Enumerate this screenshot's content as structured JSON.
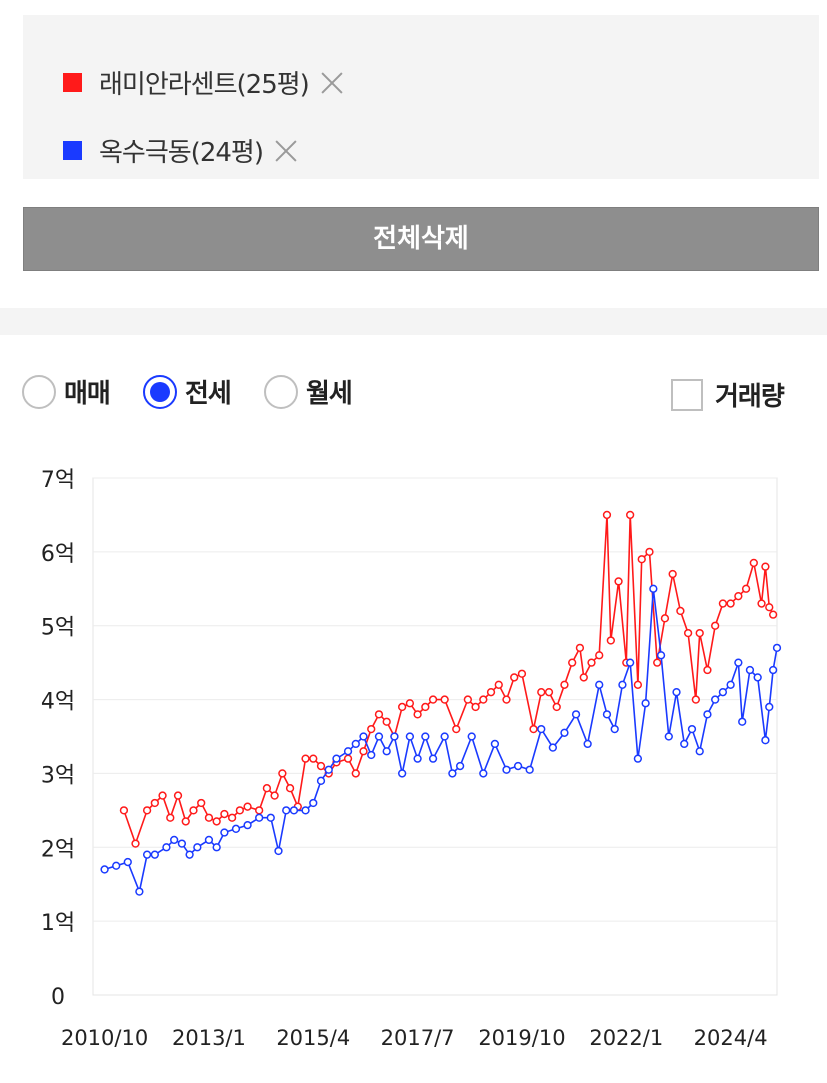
{
  "compare": {
    "items": [
      {
        "name": "래미안라센트(25평)",
        "color": "#ff1a1a"
      },
      {
        "name": "옥수극동(24평)",
        "color": "#1a3aff"
      }
    ],
    "delete_all_label": "전체삭제"
  },
  "filters": {
    "options": [
      "매매",
      "전세",
      "월세"
    ],
    "selected": "전세",
    "volume_label": "거래량",
    "volume_checked": false
  },
  "chart_data": {
    "type": "line",
    "title": "",
    "xlabel": "",
    "ylabel": "",
    "x_ticks": [
      "2010/10",
      "2013/1",
      "2015/4",
      "2017/7",
      "2019/10",
      "2022/1",
      "2024/4"
    ],
    "y_ticks": [
      "0",
      "1억",
      "2억",
      "3억",
      "4억",
      "5억",
      "6억",
      "7억"
    ],
    "ylim": [
      0,
      7
    ],
    "xlim": [
      "2010/7",
      "2025/4"
    ],
    "y_unit": "억",
    "grid": "horizontal",
    "series": [
      {
        "name": "래미안라센트(25평)",
        "color": "#ff1a1a",
        "points": [
          [
            "2011/3",
            2.5
          ],
          [
            "2011/6",
            2.05
          ],
          [
            "2011/9",
            2.5
          ],
          [
            "2011/11",
            2.6
          ],
          [
            "2012/1",
            2.7
          ],
          [
            "2012/3",
            2.4
          ],
          [
            "2012/5",
            2.7
          ],
          [
            "2012/7",
            2.35
          ],
          [
            "2012/9",
            2.5
          ],
          [
            "2012/11",
            2.6
          ],
          [
            "2013/1",
            2.4
          ],
          [
            "2013/3",
            2.35
          ],
          [
            "2013/5",
            2.45
          ],
          [
            "2013/7",
            2.4
          ],
          [
            "2013/9",
            2.5
          ],
          [
            "2013/11",
            2.55
          ],
          [
            "2014/2",
            2.5
          ],
          [
            "2014/4",
            2.8
          ],
          [
            "2014/6",
            2.7
          ],
          [
            "2014/8",
            3.0
          ],
          [
            "2014/10",
            2.8
          ],
          [
            "2014/12",
            2.55
          ],
          [
            "2015/2",
            3.2
          ],
          [
            "2015/4",
            3.2
          ],
          [
            "2015/6",
            3.1
          ],
          [
            "2015/8",
            3.0
          ],
          [
            "2015/10",
            3.15
          ],
          [
            "2016/1",
            3.2
          ],
          [
            "2016/3",
            3.0
          ],
          [
            "2016/5",
            3.3
          ],
          [
            "2016/7",
            3.6
          ],
          [
            "2016/9",
            3.8
          ],
          [
            "2016/11",
            3.7
          ],
          [
            "2017/1",
            3.5
          ],
          [
            "2017/3",
            3.9
          ],
          [
            "2017/5",
            3.95
          ],
          [
            "2017/7",
            3.8
          ],
          [
            "2017/9",
            3.9
          ],
          [
            "2017/11",
            4.0
          ],
          [
            "2018/2",
            4.0
          ],
          [
            "2018/5",
            3.6
          ],
          [
            "2018/8",
            4.0
          ],
          [
            "2018/10",
            3.9
          ],
          [
            "2018/12",
            4.0
          ],
          [
            "2019/2",
            4.1
          ],
          [
            "2019/4",
            4.2
          ],
          [
            "2019/6",
            4.0
          ],
          [
            "2019/8",
            4.3
          ],
          [
            "2019/10",
            4.35
          ],
          [
            "2020/1",
            3.6
          ],
          [
            "2020/3",
            4.1
          ],
          [
            "2020/5",
            4.1
          ],
          [
            "2020/7",
            3.9
          ],
          [
            "2020/9",
            4.2
          ],
          [
            "2020/11",
            4.5
          ],
          [
            "2021/1",
            4.7
          ],
          [
            "2021/2",
            4.3
          ],
          [
            "2021/4",
            4.5
          ],
          [
            "2021/6",
            4.6
          ],
          [
            "2021/8",
            6.5
          ],
          [
            "2021/9",
            4.8
          ],
          [
            "2021/11",
            5.6
          ],
          [
            "2022/1",
            4.5
          ],
          [
            "2022/2",
            6.5
          ],
          [
            "2022/4",
            4.2
          ],
          [
            "2022/5",
            5.9
          ],
          [
            "2022/7",
            6.0
          ],
          [
            "2022/9",
            4.5
          ],
          [
            "2022/11",
            5.1
          ],
          [
            "2023/1",
            5.7
          ],
          [
            "2023/3",
            5.2
          ],
          [
            "2023/5",
            4.9
          ],
          [
            "2023/7",
            4.0
          ],
          [
            "2023/8",
            4.9
          ],
          [
            "2023/10",
            4.4
          ],
          [
            "2023/12",
            5.0
          ],
          [
            "2024/2",
            5.3
          ],
          [
            "2024/4",
            5.3
          ],
          [
            "2024/6",
            5.4
          ],
          [
            "2024/8",
            5.5
          ],
          [
            "2024/10",
            5.85
          ],
          [
            "2024/12",
            5.3
          ],
          [
            "2025/1",
            5.8
          ],
          [
            "2025/2",
            5.25
          ],
          [
            "2025/3",
            5.15
          ]
        ]
      },
      {
        "name": "옥수극동(24평)",
        "color": "#1a3aff",
        "points": [
          [
            "2010/10",
            1.7
          ],
          [
            "2011/1",
            1.75
          ],
          [
            "2011/4",
            1.8
          ],
          [
            "2011/7",
            1.4
          ],
          [
            "2011/9",
            1.9
          ],
          [
            "2011/11",
            1.9
          ],
          [
            "2012/2",
            2.0
          ],
          [
            "2012/4",
            2.1
          ],
          [
            "2012/6",
            2.05
          ],
          [
            "2012/8",
            1.9
          ],
          [
            "2012/10",
            2.0
          ],
          [
            "2013/1",
            2.1
          ],
          [
            "2013/3",
            2.0
          ],
          [
            "2013/5",
            2.2
          ],
          [
            "2013/8",
            2.25
          ],
          [
            "2013/11",
            2.3
          ],
          [
            "2014/2",
            2.4
          ],
          [
            "2014/5",
            2.4
          ],
          [
            "2014/7",
            1.95
          ],
          [
            "2014/9",
            2.5
          ],
          [
            "2014/11",
            2.5
          ],
          [
            "2015/2",
            2.5
          ],
          [
            "2015/4",
            2.6
          ],
          [
            "2015/6",
            2.9
          ],
          [
            "2015/8",
            3.05
          ],
          [
            "2015/10",
            3.2
          ],
          [
            "2016/1",
            3.3
          ],
          [
            "2016/3",
            3.4
          ],
          [
            "2016/5",
            3.5
          ],
          [
            "2016/7",
            3.25
          ],
          [
            "2016/9",
            3.5
          ],
          [
            "2016/11",
            3.3
          ],
          [
            "2017/1",
            3.5
          ],
          [
            "2017/3",
            3.0
          ],
          [
            "2017/5",
            3.5
          ],
          [
            "2017/7",
            3.2
          ],
          [
            "2017/9",
            3.5
          ],
          [
            "2017/11",
            3.2
          ],
          [
            "2018/2",
            3.5
          ],
          [
            "2018/4",
            3.0
          ],
          [
            "2018/6",
            3.1
          ],
          [
            "2018/9",
            3.5
          ],
          [
            "2018/12",
            3.0
          ],
          [
            "2019/3",
            3.4
          ],
          [
            "2019/6",
            3.05
          ],
          [
            "2019/9",
            3.1
          ],
          [
            "2019/12",
            3.05
          ],
          [
            "2020/3",
            3.6
          ],
          [
            "2020/6",
            3.35
          ],
          [
            "2020/9",
            3.55
          ],
          [
            "2020/12",
            3.8
          ],
          [
            "2021/3",
            3.4
          ],
          [
            "2021/6",
            4.2
          ],
          [
            "2021/8",
            3.8
          ],
          [
            "2021/10",
            3.6
          ],
          [
            "2021/12",
            4.2
          ],
          [
            "2022/2",
            4.5
          ],
          [
            "2022/4",
            3.2
          ],
          [
            "2022/6",
            3.95
          ],
          [
            "2022/8",
            5.5
          ],
          [
            "2022/10",
            4.6
          ],
          [
            "2022/12",
            3.5
          ],
          [
            "2023/2",
            4.1
          ],
          [
            "2023/4",
            3.4
          ],
          [
            "2023/6",
            3.6
          ],
          [
            "2023/8",
            3.3
          ],
          [
            "2023/10",
            3.8
          ],
          [
            "2023/12",
            4.0
          ],
          [
            "2024/2",
            4.1
          ],
          [
            "2024/4",
            4.2
          ],
          [
            "2024/6",
            4.5
          ],
          [
            "2024/7",
            3.7
          ],
          [
            "2024/9",
            4.4
          ],
          [
            "2024/11",
            4.3
          ],
          [
            "2025/1",
            3.45
          ],
          [
            "2025/2",
            3.9
          ],
          [
            "2025/3",
            4.4
          ],
          [
            "2025/4",
            4.7
          ]
        ]
      }
    ]
  }
}
